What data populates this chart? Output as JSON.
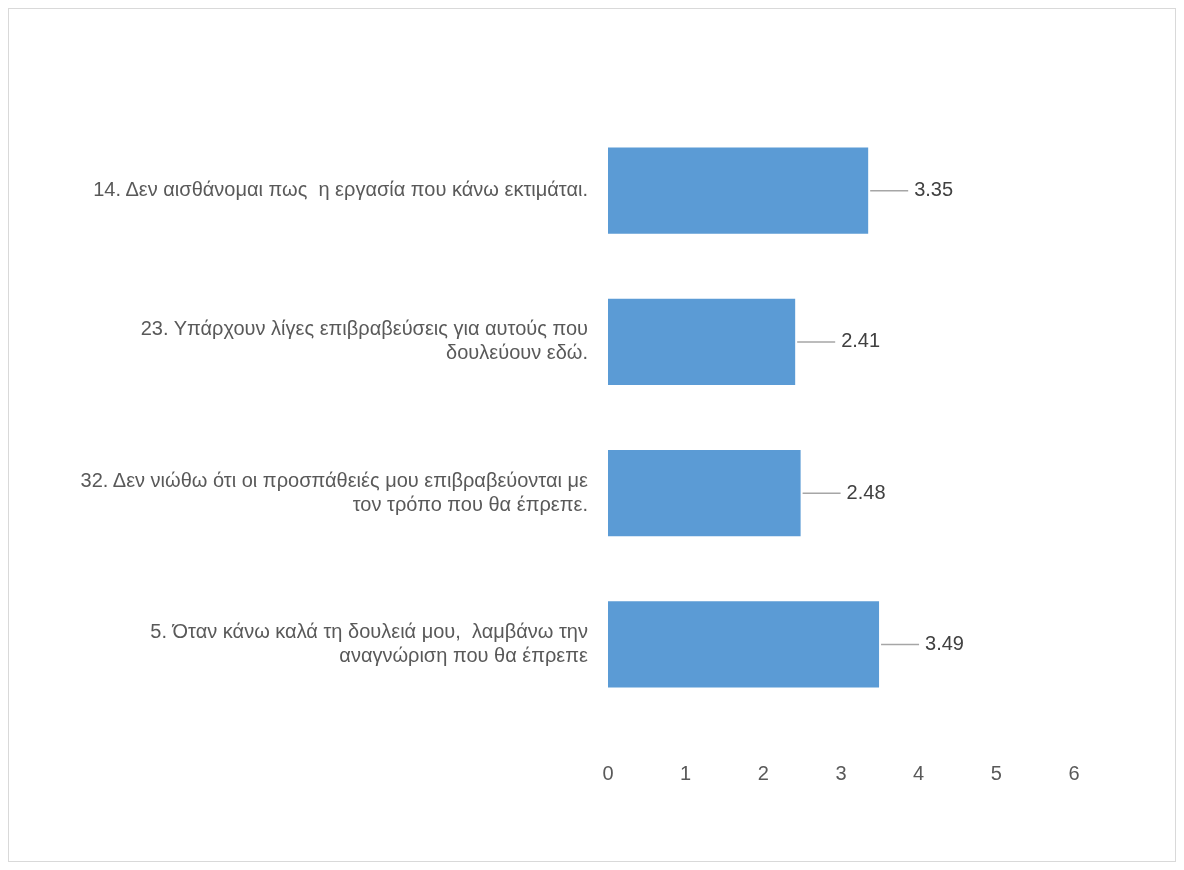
{
  "chart_data": {
    "type": "bar",
    "orientation": "horizontal",
    "categories": [
      "14. Δεν αισθάνομαι πως  η εργασία που κάνω εκτιμάται.",
      "23. Υπάρχουν λίγες επιβραβεύσεις για αυτούς που δουλεύουν εδώ.",
      "32. Δεν νιώθω ότι οι προσπάθειές μου επιβραβεύονται με τον τρόπο που θα έπρεπε.",
      "5. Όταν κάνω καλά τη δουλειά μου,  λαμβάνω την αναγνώριση που θα έπρεπε"
    ],
    "values": [
      3.35,
      2.41,
      2.48,
      3.49
    ],
    "color": "#5b9bd5",
    "xlim": [
      0,
      6
    ],
    "xticks": [
      0,
      1,
      2,
      3,
      4,
      5,
      6
    ],
    "grid": false,
    "data_labels": true
  }
}
